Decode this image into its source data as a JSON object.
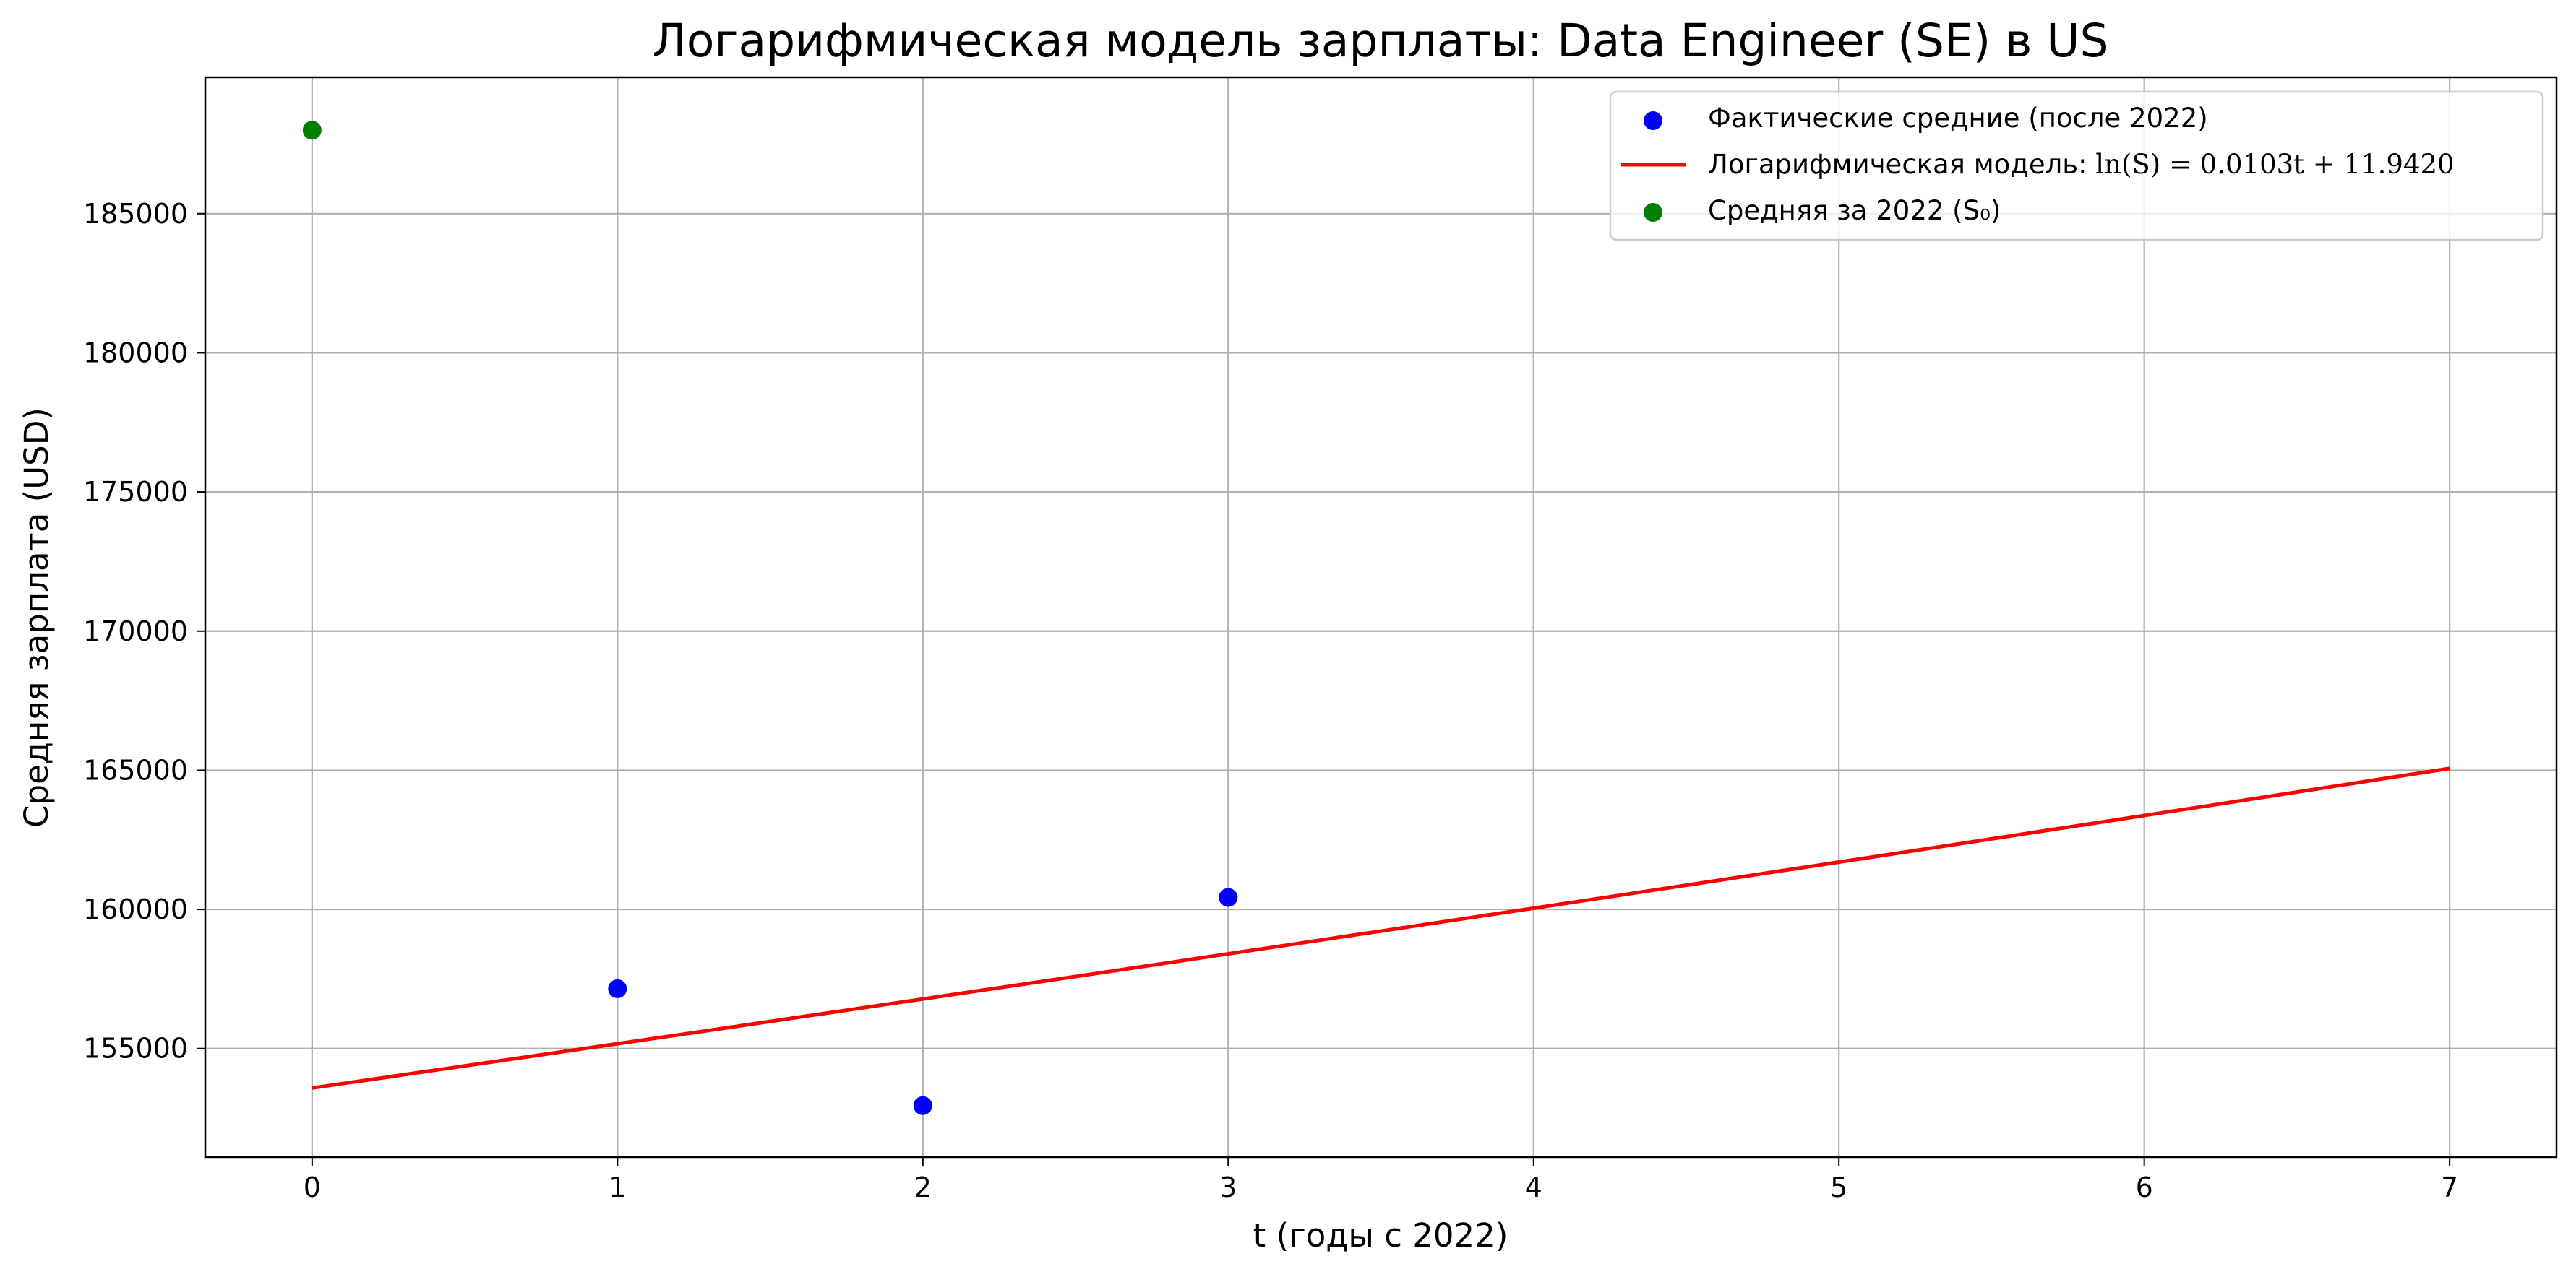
{
  "chart_data": {
    "type": "scatter",
    "title": "Логарифмическая модель зарплаты: Data Engineer (SE) в US",
    "xlabel": "t (годы с 2022)",
    "ylabel": "Средняя зарплата (USD)",
    "xlim": [
      -0.35,
      7.35
    ],
    "ylim": [
      151100,
      189900
    ],
    "xticks": [
      0,
      1,
      2,
      3,
      4,
      5,
      6,
      7
    ],
    "xtick_labels": [
      "0",
      "1",
      "2",
      "3",
      "4",
      "5",
      "6",
      "7"
    ],
    "yticks": [
      155000,
      160000,
      165000,
      170000,
      175000,
      180000,
      185000
    ],
    "ytick_labels": [
      "155000",
      "160000",
      "165000",
      "170000",
      "175000",
      "180000",
      "185000"
    ],
    "grid": true,
    "legend_position": "top-right",
    "series": [
      {
        "name": "Фактические средние (после 2022)",
        "kind": "scatter",
        "color": "#0000ff",
        "points": [
          {
            "x": 1,
            "y": 157150
          },
          {
            "x": 2,
            "y": 152950
          },
          {
            "x": 3,
            "y": 160430
          }
        ]
      },
      {
        "name": "Логарифмическая модель: ln(S) = 0.0103t + 11.9420",
        "legend_prefix": "Логарифмическая модель: ",
        "legend_formula": "ln(S) = 0.0103t + 11.9420",
        "kind": "line",
        "color": "#ff0000",
        "slope": 0.0103,
        "intercept": 11.942,
        "x_range": [
          0,
          7
        ]
      },
      {
        "name": "Средняя за 2022 (S₀)",
        "kind": "scatter",
        "color": "#008000",
        "points": [
          {
            "x": 0,
            "y": 188000
          }
        ]
      }
    ]
  }
}
